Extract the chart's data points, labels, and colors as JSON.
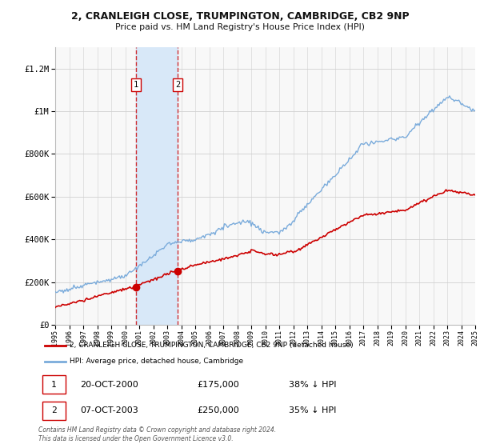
{
  "title": "2, CRANLEIGH CLOSE, TRUMPINGTON, CAMBRIDGE, CB2 9NP",
  "subtitle": "Price paid vs. HM Land Registry's House Price Index (HPI)",
  "hpi_label": "HPI: Average price, detached house, Cambridge",
  "price_label": "2, CRANLEIGH CLOSE, TRUMPINGTON, CAMBRIDGE, CB2 9NP (detached house)",
  "hpi_color": "#7aabdb",
  "price_color": "#cc0000",
  "vline_color": "#cc0000",
  "span_color": "#d8e8f8",
  "plot_bg": "#f8f8f8",
  "ylim": [
    0,
    1300000
  ],
  "yticks": [
    0,
    200000,
    400000,
    600000,
    800000,
    1000000,
    1200000
  ],
  "ytick_labels": [
    "£0",
    "£200K",
    "£400K",
    "£600K",
    "£800K",
    "£1M",
    "£1.2M"
  ],
  "sale1_x": 2000.79,
  "sale1_price": 175000,
  "sale1_label": "20-OCT-2000",
  "sale1_pct": "38% ↓ HPI",
  "sale2_x": 2003.76,
  "sale2_price": 250000,
  "sale2_label": "07-OCT-2003",
  "sale2_pct": "35% ↓ HPI",
  "footnote": "Contains HM Land Registry data © Crown copyright and database right 2024.\nThis data is licensed under the Open Government Licence v3.0.",
  "xmin": 1995,
  "xmax": 2025
}
